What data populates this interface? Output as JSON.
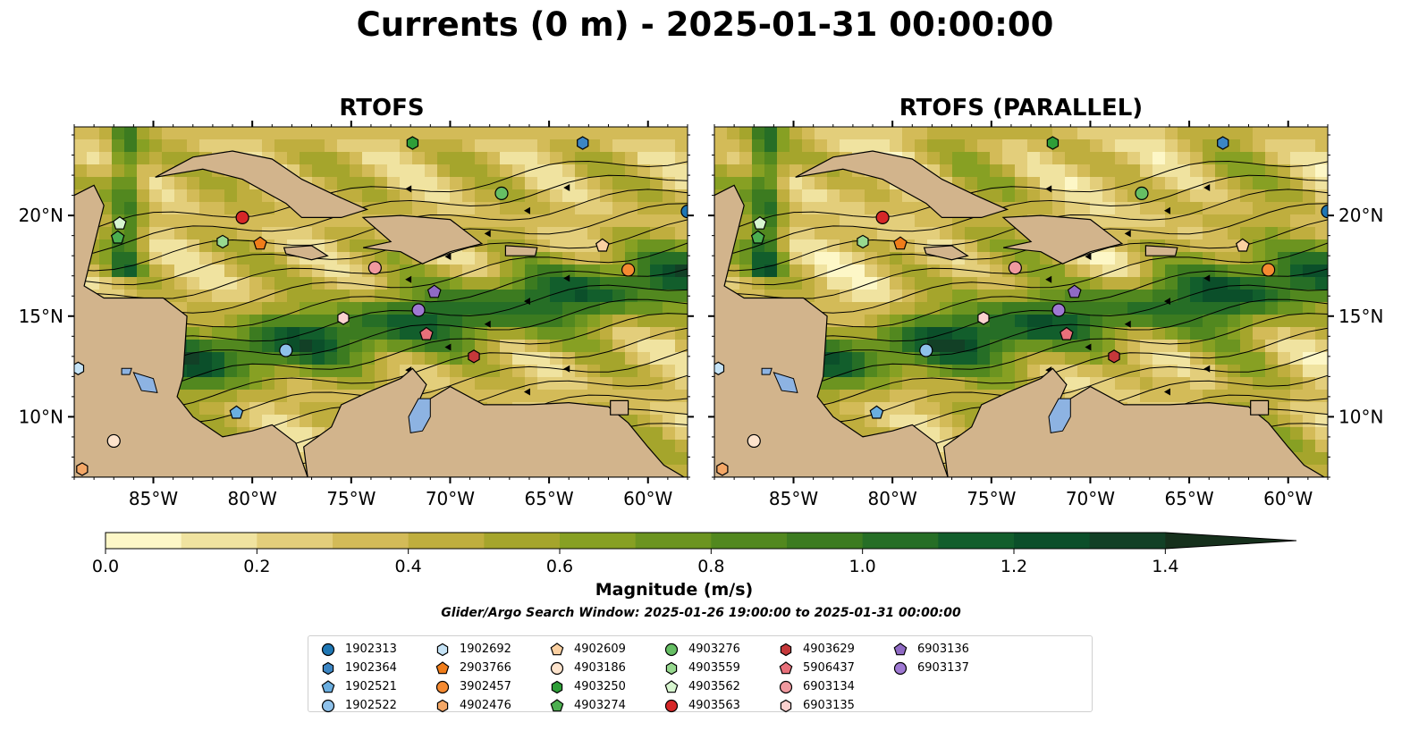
{
  "title": "Currents (0 m) - 2025-01-31 00:00:00",
  "panels": [
    {
      "title": "RTOFS",
      "variant": "operational"
    },
    {
      "title": "RTOFS (PARALLEL)",
      "variant": "parallel"
    }
  ],
  "map": {
    "extent": {
      "lon": [
        -89.0,
        -58.0
      ],
      "lat": [
        7.0,
        24.4
      ]
    },
    "lon_ticks": [
      "85°W",
      "80°W",
      "75°W",
      "70°W",
      "65°W",
      "60°W"
    ],
    "lon_tick_values": [
      -85,
      -80,
      -75,
      -70,
      -65,
      -60
    ],
    "lat_ticks": [
      "20°N",
      "15°N",
      "10°N"
    ],
    "lat_tick_values": [
      20,
      15,
      10
    ],
    "land_color": "#d2b48c",
    "lake_color": "#8db3e2",
    "streamline_color": "#000000"
  },
  "colorbar": {
    "label": "Magnitude (m/s)",
    "tick_labels": [
      "0.0",
      "0.2",
      "0.4",
      "0.6",
      "0.8",
      "1.0",
      "1.2",
      "1.4"
    ],
    "tick_values": [
      0.0,
      0.2,
      0.4,
      0.6,
      0.8,
      1.0,
      1.2,
      1.4
    ],
    "min": 0.0,
    "max": 1.5,
    "step": 0.1,
    "extend": "max",
    "colors": [
      "#fdf7c7",
      "#f0e3a0",
      "#e3ce7b",
      "#d3bb58",
      "#bfae3e",
      "#a5a52c",
      "#87a023",
      "#6c9420",
      "#52881f",
      "#3c7b20",
      "#266e26",
      "#125e2c",
      "#0b4f2a",
      "#124026",
      "#16301c"
    ]
  },
  "search_window": "Glider/Argo Search Window: 2025-01-26 19:00:00 to 2025-01-31 00:00:00",
  "floats": [
    {
      "id": "1902313",
      "marker": "circle",
      "color": "#1f77b4",
      "lon": -58.0,
      "lat": 20.2
    },
    {
      "id": "1902364",
      "marker": "hexagon",
      "color": "#3c86c4",
      "lon": -63.3,
      "lat": 23.6
    },
    {
      "id": "1902521",
      "marker": "pentagon",
      "color": "#6aaee0",
      "lon": -80.8,
      "lat": 10.2
    },
    {
      "id": "1902522",
      "marker": "circle",
      "color": "#8ec1ea",
      "lon": -78.3,
      "lat": 13.3
    },
    {
      "id": "1902692",
      "marker": "hexagon",
      "color": "#c5e3f6",
      "lon": -88.8,
      "lat": 12.4
    },
    {
      "id": "2903766",
      "marker": "pentagon",
      "color": "#f07d1a",
      "lon": -79.6,
      "lat": 18.6
    },
    {
      "id": "3902457",
      "marker": "circle",
      "color": "#f58a31",
      "lon": -61.0,
      "lat": 17.3
    },
    {
      "id": "4902476",
      "marker": "hexagon",
      "color": "#f4a766",
      "lon": -88.6,
      "lat": 7.4
    },
    {
      "id": "4902609",
      "marker": "pentagon",
      "color": "#fbd0a1",
      "lon": -62.3,
      "lat": 18.5
    },
    {
      "id": "4903186",
      "marker": "circle",
      "color": "#fde3cc",
      "lon": -87.0,
      "lat": 8.8
    },
    {
      "id": "4903250",
      "marker": "hexagon",
      "color": "#2e9e38",
      "lon": -71.9,
      "lat": 23.6
    },
    {
      "id": "4903274",
      "marker": "pentagon",
      "color": "#4caf50",
      "lon": -86.8,
      "lat": 18.9
    },
    {
      "id": "4903276",
      "marker": "circle",
      "color": "#66bf64",
      "lon": -67.4,
      "lat": 21.1
    },
    {
      "id": "4903559",
      "marker": "hexagon",
      "color": "#97d98f",
      "lon": -81.5,
      "lat": 18.7
    },
    {
      "id": "4903562",
      "marker": "pentagon",
      "color": "#d7f5cf",
      "lon": -86.7,
      "lat": 19.6
    },
    {
      "id": "4903563",
      "marker": "circle",
      "color": "#d62728",
      "lon": -80.5,
      "lat": 19.9
    },
    {
      "id": "4903629",
      "marker": "hexagon",
      "color": "#c5383a",
      "lon": -68.8,
      "lat": 13.0
    },
    {
      "id": "5906437",
      "marker": "pentagon",
      "color": "#e8707a",
      "lon": -71.2,
      "lat": 14.1
    },
    {
      "id": "6903134",
      "marker": "circle",
      "color": "#f0999f",
      "lon": -73.8,
      "lat": 17.4
    },
    {
      "id": "6903135",
      "marker": "hexagon",
      "color": "#fbd1cf",
      "lon": -75.4,
      "lat": 14.9
    },
    {
      "id": "6903136",
      "marker": "pentagon",
      "color": "#8f6ac4",
      "lon": -70.8,
      "lat": 16.2
    },
    {
      "id": "6903137",
      "marker": "circle",
      "color": "#9f79d3",
      "lon": -71.6,
      "lat": 15.3
    }
  ]
}
